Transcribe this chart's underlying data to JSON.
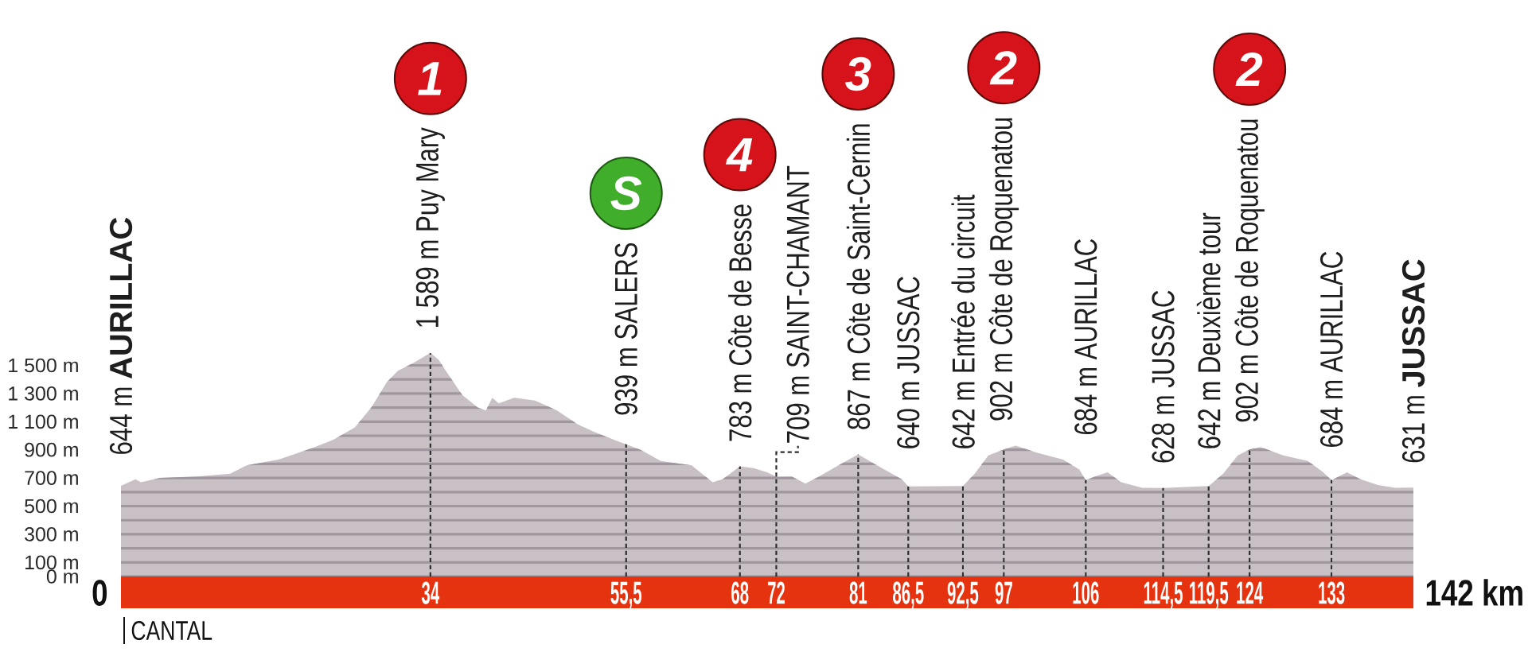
{
  "chart_data": {
    "type": "area",
    "color": "#c8c0c5",
    "x": [
      0,
      1.6,
      2.2,
      4.3,
      8.4,
      12,
      13.8,
      17.3,
      20.9,
      23.3,
      25.7,
      27.5,
      29.2,
      30.4,
      32.2,
      34,
      34.9,
      35.7,
      37.5,
      39.2,
      40.1,
      40.8,
      41.5,
      43.2,
      45.5,
      47.9,
      50.2,
      51.9,
      54.2,
      55.5,
      57.1,
      59.3,
      62.7,
      65,
      66.1,
      68,
      69.5,
      71,
      72,
      73.7,
      75.2,
      76.7,
      79.1,
      81,
      82.8,
      84.7,
      85.8,
      86.5,
      92.5,
      93.8,
      95.3,
      97,
      98.3,
      100.6,
      103.5,
      105.3,
      106,
      107,
      108.4,
      109.9,
      112.2,
      114.5,
      119.5,
      121.1,
      122.7,
      124,
      125.2,
      127.7,
      130.4,
      132.1,
      133,
      134.7,
      136.2,
      138.1,
      140,
      142
    ],
    "values": [
      644,
      690,
      670,
      700,
      710,
      730,
      790,
      830,
      910,
      970,
      1060,
      1200,
      1380,
      1460,
      1520,
      1589,
      1540,
      1460,
      1290,
      1200,
      1180,
      1270,
      1230,
      1270,
      1250,
      1180,
      1080,
      1030,
      970,
      939,
      900,
      820,
      790,
      670,
      690,
      783,
      770,
      740,
      709,
      710,
      660,
      710,
      800,
      867,
      800,
      730,
      690,
      640,
      642,
      730,
      860,
      902,
      930,
      880,
      830,
      760,
      684,
      710,
      740,
      670,
      630,
      628,
      642,
      730,
      860,
      902,
      920,
      860,
      820,
      740,
      684,
      740,
      690,
      650,
      630,
      631
    ],
    "xlim": [
      0,
      142
    ],
    "ylim": [
      0,
      1600
    ],
    "xticks": [
      34,
      {
        "value": 55.5,
        "label": "55,5"
      },
      68,
      72,
      81,
      {
        "value": 86.5,
        "label": "86,5"
      },
      {
        "value": 92.5,
        "label": "92,5"
      },
      97,
      106,
      {
        "value": 114.5,
        "label": "114,5"
      },
      {
        "value": 119.5,
        "label": "119,5"
      },
      124,
      133
    ],
    "yticks": [
      {
        "value": 0,
        "label": "0 m"
      },
      {
        "value": 100,
        "label": "100 m"
      },
      {
        "value": 200,
        "label": null
      },
      {
        "value": 300,
        "label": "300 m"
      },
      {
        "value": 400,
        "label": null
      },
      {
        "value": 500,
        "label": "500 m"
      },
      {
        "value": 600,
        "label": null
      },
      {
        "value": 700,
        "label": "700 m"
      },
      {
        "value": 800,
        "label": null
      },
      {
        "value": 900,
        "label": "900 m"
      },
      {
        "value": 1000,
        "label": null
      },
      {
        "value": 1100,
        "label": "1 100 m"
      },
      {
        "value": 1200,
        "label": null
      },
      {
        "value": 1300,
        "label": "1 300 m"
      },
      {
        "value": 1400,
        "label": null
      },
      {
        "value": 1500,
        "label": "1 500 m"
      }
    ],
    "grid": true,
    "annotations": [
      "CANTAL",
      {
        "text": "644 m **AURILLAC**",
        "x": 0,
        "y": 644
      },
      "0",
      {
        "text": "1 589 m Puy Mary",
        "x": 34,
        "y": 1589
      },
      "1",
      {
        "text": "939 m SALERS",
        "x": 55.5,
        "y": 939
      },
      "S",
      {
        "text": "783 m Côte de Besse",
        "x": 68,
        "y": 783
      },
      "4",
      {
        "text": "709 m SAINT-CHAMANT",
        "x": 72,
        "y": 709
      },
      {
        "text": "867 m Côte de Saint-Cernin",
        "x": 81,
        "y": 867
      },
      "3",
      {
        "text": "640 m JUSSAC",
        "x": 86.5,
        "y": 640
      },
      {
        "text": "642 m Entrée du circuit",
        "x": 92.5,
        "y": 642
      },
      {
        "text": "902 m Côte de Roquenatou",
        "x": 97,
        "y": 902
      },
      "2",
      {
        "text": "684 m AURILLAC",
        "x": 106,
        "y": 684
      },
      {
        "text": "628 m JUSSAC",
        "x": 114.5,
        "y": 628
      },
      {
        "text": "642 m Deuxième tour",
        "x": 119.5,
        "y": 642
      },
      {
        "text": "902 m Côte de Roquenatou",
        "x": 124,
        "y": 902
      },
      "2",
      {
        "text": "684 m AURILLAC",
        "x": 133,
        "y": 684
      },
      {
        "text": "631 m **JUSSAC**",
        "x": 142,
        "y": 631
      },
      "142 km"
    ]
  }
}
